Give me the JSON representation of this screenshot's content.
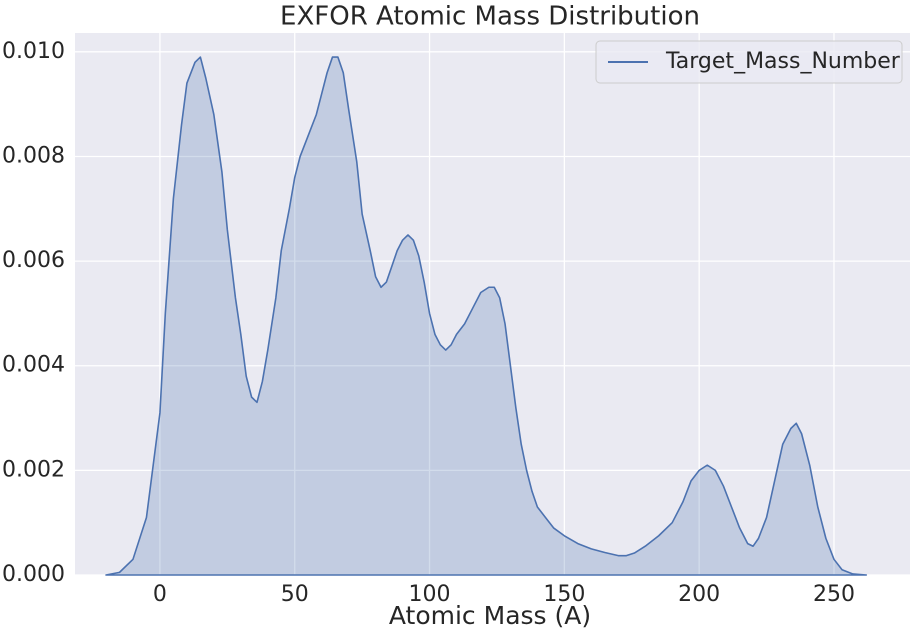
{
  "chart_data": {
    "type": "area",
    "title": "EXFOR Atomic Mass Distribution",
    "x_label": "Atomic Mass (A)",
    "x": [
      -20,
      -15,
      -10,
      -5,
      0,
      2,
      5,
      8,
      10,
      13,
      15,
      17,
      20,
      23,
      25,
      28,
      30,
      32,
      34,
      36,
      38,
      40,
      43,
      45,
      48,
      50,
      52,
      55,
      58,
      60,
      62,
      64,
      66,
      68,
      70,
      73,
      75,
      78,
      80,
      82,
      84,
      86,
      88,
      90,
      92,
      94,
      96,
      98,
      100,
      102,
      104,
      106,
      108,
      110,
      113,
      116,
      119,
      122,
      124,
      126,
      128,
      130,
      132,
      134,
      136,
      138,
      140,
      143,
      146,
      150,
      155,
      160,
      165,
      170,
      173,
      176,
      180,
      185,
      190,
      194,
      197,
      200,
      203,
      206,
      209,
      212,
      215,
      218,
      220,
      222,
      225,
      228,
      231,
      234,
      236,
      238,
      241,
      244,
      247,
      250,
      253,
      257,
      262
    ],
    "series": [
      {
        "name": "Target_Mass_Number",
        "color": "#4c72b0",
        "values": [
          0,
          5e-05,
          0.0003,
          0.0011,
          0.0031,
          0.005,
          0.0072,
          0.0086,
          0.0094,
          0.0098,
          0.0099,
          0.0095,
          0.0088,
          0.0077,
          0.0066,
          0.0053,
          0.0046,
          0.0038,
          0.0034,
          0.0033,
          0.0037,
          0.0043,
          0.0053,
          0.0062,
          0.007,
          0.0076,
          0.008,
          0.0084,
          0.0088,
          0.0092,
          0.0096,
          0.0099,
          0.0099,
          0.0096,
          0.0089,
          0.0079,
          0.0069,
          0.0062,
          0.0057,
          0.0055,
          0.0056,
          0.0059,
          0.0062,
          0.0064,
          0.0065,
          0.0064,
          0.0061,
          0.0056,
          0.005,
          0.0046,
          0.0044,
          0.0043,
          0.0044,
          0.0046,
          0.0048,
          0.0051,
          0.0054,
          0.0055,
          0.0055,
          0.0053,
          0.0048,
          0.004,
          0.0032,
          0.0025,
          0.002,
          0.0016,
          0.0013,
          0.0011,
          0.0009,
          0.00075,
          0.0006,
          0.0005,
          0.00043,
          0.00037,
          0.00037,
          0.00042,
          0.00055,
          0.00075,
          0.001,
          0.0014,
          0.0018,
          0.002,
          0.0021,
          0.002,
          0.0017,
          0.0013,
          0.0009,
          0.0006,
          0.00055,
          0.0007,
          0.0011,
          0.0018,
          0.0025,
          0.0028,
          0.0029,
          0.0027,
          0.0021,
          0.0013,
          0.0007,
          0.0003,
          0.0001,
          2e-05,
          0
        ]
      }
    ],
    "xlim": [
      -31.5,
      278.2
    ],
    "ylim": [
      0,
      0.01036
    ],
    "xticks": [
      0,
      50,
      100,
      150,
      200,
      250
    ],
    "yticks": [
      {
        "value": 0,
        "label": "0.000"
      },
      {
        "value": 0.002,
        "label": "0.002"
      },
      {
        "value": 0.004,
        "label": "0.004"
      },
      {
        "value": 0.006,
        "label": "0.006"
      },
      {
        "value": 0.008,
        "label": "0.008"
      },
      {
        "value": 0.01,
        "label": "0.010"
      }
    ],
    "grid": true,
    "legend": "upper right",
    "fill_opacity": 0.25
  }
}
